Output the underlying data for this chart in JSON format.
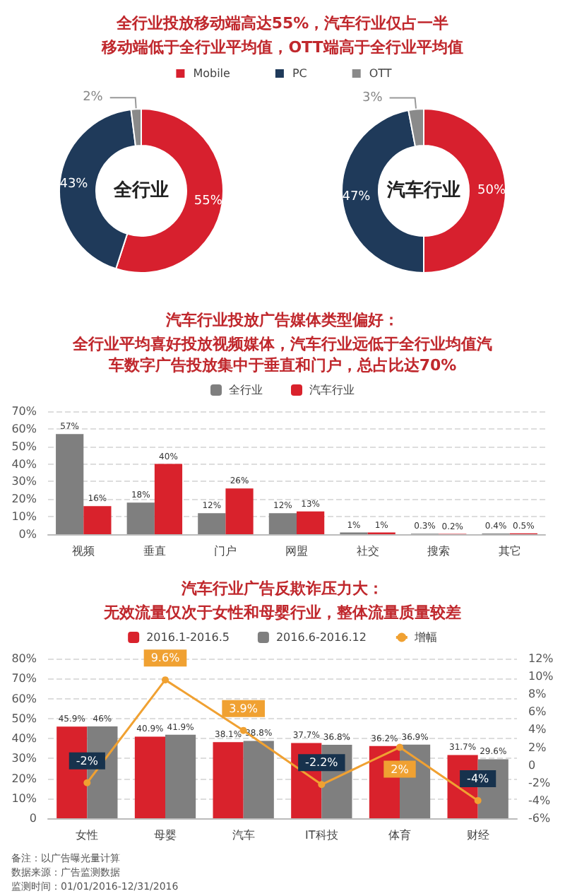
{
  "chart_data": [
    {
      "type": "donut",
      "title": "全行业投放移动端高达55%，汽车行业仅占一半",
      "subtitle": "移动端低于全行业平均值，OTT端高于全行业平均值",
      "legend": "top",
      "categories": [
        "Mobile",
        "PC",
        "OTT"
      ],
      "colors": [
        "#d7202e",
        "#1f3a5a",
        "#8a8a8a"
      ],
      "series": [
        {
          "name": "全行业",
          "values": [
            55,
            43,
            2
          ],
          "value_labels": [
            "55%",
            "43%",
            "2%"
          ]
        },
        {
          "name": "汽车行业",
          "values": [
            50,
            47,
            3
          ],
          "value_labels": [
            "50%",
            "47%",
            "3%"
          ]
        }
      ]
    },
    {
      "type": "bar",
      "title": "汽车行业投放广告媒体类型偏好：",
      "subtitle": "全行业平均喜好投放视频媒体，汽车行业远低于全行业均值汽车数字广告投放集中于垂直和门户，总占比达70%",
      "legend": "top",
      "grid": "y",
      "categories": [
        "视频",
        "垂直",
        "门户",
        "网盟",
        "社交",
        "搜索",
        "其它"
      ],
      "ylim": [
        0,
        70
      ],
      "yticks": [
        {
          "value": 0,
          "label": "0%"
        },
        {
          "value": 10,
          "label": "10%"
        },
        {
          "value": 20,
          "label": "20%"
        },
        {
          "value": 30,
          "label": "30%"
        },
        {
          "value": 40,
          "label": "40%"
        },
        {
          "value": 50,
          "label": "50%"
        },
        {
          "value": 60,
          "label": "60%"
        },
        {
          "value": 70,
          "label": "70%"
        }
      ],
      "series": [
        {
          "name": "全行业",
          "color": "#7f7f7f",
          "values": [
            57,
            18,
            12,
            12,
            1,
            0.3,
            0.4
          ],
          "value_labels": [
            "57%",
            "18%",
            "12%",
            "12%",
            "1%",
            "0.3%",
            "0.4%"
          ]
        },
        {
          "name": "汽车行业",
          "color": "#d9222c",
          "values": [
            16,
            40,
            26,
            13,
            1,
            0.2,
            0.5
          ],
          "value_labels": [
            "16%",
            "40%",
            "26%",
            "13%",
            "1%",
            "0.2%",
            "0.5%"
          ]
        }
      ]
    },
    {
      "type": "bar",
      "title": "汽车行业广告反欺诈压力大：",
      "subtitle": "无效流量仅次于女性和母婴行业，整体流量质量较差",
      "legend": "top",
      "grid": "y",
      "categories": [
        "女性",
        "母婴",
        "汽车",
        "IT科技",
        "体育",
        "财经"
      ],
      "ylim": [
        0,
        80
      ],
      "yticks": [
        {
          "value": 0,
          "label": "0"
        },
        {
          "value": 10,
          "label": "10%"
        },
        {
          "value": 20,
          "label": "20%"
        },
        {
          "value": 30,
          "label": "30%"
        },
        {
          "value": 40,
          "label": "40%"
        },
        {
          "value": 50,
          "label": "50%"
        },
        {
          "value": 60,
          "label": "60%"
        },
        {
          "value": 70,
          "label": "70%"
        },
        {
          "value": 80,
          "label": "80%"
        }
      ],
      "y2lim": [
        -6,
        12
      ],
      "y2ticks": [
        {
          "value": -6,
          "label": "-6%"
        },
        {
          "value": -4,
          "label": "-4%"
        },
        {
          "value": -2,
          "label": "-2%"
        },
        {
          "value": 0,
          "label": "0"
        },
        {
          "value": 2,
          "label": "2%"
        },
        {
          "value": 4,
          "label": "4%"
        },
        {
          "value": 6,
          "label": "6%"
        },
        {
          "value": 8,
          "label": "8%"
        },
        {
          "value": 10,
          "label": "10%"
        },
        {
          "value": 12,
          "label": "12%"
        }
      ],
      "annotations": [
        "备注：以广告曝光量计算",
        "数据来源：广告监测数据",
        "监测时间：01/01/2016-12/31/2016"
      ],
      "series": [
        {
          "name": "2016.1-2016.5",
          "color": "#d9222c",
          "values": [
            45.9,
            40.9,
            38.1,
            37.7,
            36.2,
            31.7
          ],
          "value_labels": [
            "45.9%",
            "40.9%",
            "38.1%",
            "37.7%",
            "36.2%",
            "31.7%"
          ]
        },
        {
          "name": "2016.6-2016.12",
          "color": "#7f7f7f",
          "values": [
            46,
            41.9,
            38.8,
            36.8,
            36.9,
            29.6
          ],
          "value_labels": [
            "46%",
            "41.9%",
            "38.8%",
            "36.8%",
            "36.9%",
            "29.6%"
          ]
        },
        {
          "name": "增幅",
          "type": "line",
          "axis": "y2",
          "marker": "circle",
          "color": "#f0a132",
          "values": [
            -2,
            9.6,
            3.9,
            -2.2,
            2,
            -4
          ],
          "value_labels": [
            "-2%",
            "9.6%",
            "3.9%",
            "-2.2%",
            "2%",
            "-4%"
          ]
        }
      ]
    }
  ]
}
